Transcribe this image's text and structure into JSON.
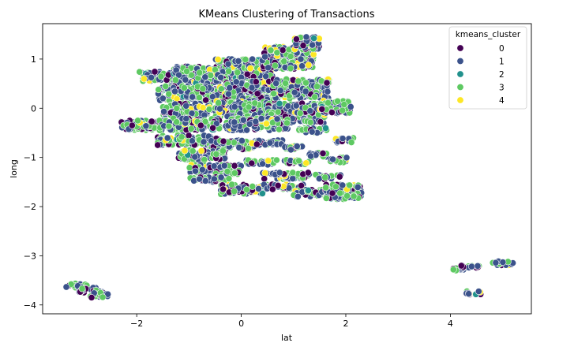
{
  "chart_data": {
    "type": "scatter",
    "title": "KMeans Clustering of Transactions",
    "xlabel": "lat",
    "ylabel": "long",
    "xlim": [
      -3.8,
      5.55
    ],
    "ylim": [
      -4.18,
      1.72
    ],
    "xticks": [
      -2,
      0,
      2,
      4
    ],
    "xtick_labels": [
      "−2",
      "0",
      "2",
      "4"
    ],
    "yticks": [
      1,
      0,
      -1,
      -2,
      -3,
      -4
    ],
    "ytick_labels": [
      "1",
      "0",
      "−1",
      "−2",
      "−3",
      "−4"
    ],
    "grid": false,
    "legend": {
      "title": "kmeans_cluster",
      "placement": "top-right",
      "entries": [
        {
          "label": "0",
          "color": "#440154"
        },
        {
          "label": "1",
          "color": "#3b528b"
        },
        {
          "label": "2",
          "color": "#21918c"
        },
        {
          "label": "3",
          "color": "#5ec962"
        },
        {
          "label": "4",
          "color": "#fde725"
        }
      ]
    },
    "point_style": {
      "edge_color": "#ffffff",
      "marker": "circle"
    },
    "clusters_visible": [
      {
        "x_range": [
          -1.95,
          -1.15
        ],
        "y_range": [
          0.55,
          0.75
        ]
      },
      {
        "x_range": [
          -1.3,
          -0.4
        ],
        "y_range": [
          0.5,
          0.85
        ]
      },
      {
        "x_range": [
          -0.5,
          0.6
        ],
        "y_range": [
          0.6,
          1.0
        ]
      },
      {
        "x_range": [
          0.4,
          1.4
        ],
        "y_range": [
          0.8,
          1.25
        ]
      },
      {
        "x_range": [
          1.0,
          1.5
        ],
        "y_range": [
          1.2,
          1.45
        ]
      },
      {
        "x_range": [
          -1.6,
          -0.3
        ],
        "y_range": [
          0.15,
          0.45
        ]
      },
      {
        "x_range": [
          -0.3,
          0.7
        ],
        "y_range": [
          0.05,
          0.55
        ]
      },
      {
        "x_range": [
          0.6,
          1.7
        ],
        "y_range": [
          0.2,
          0.6
        ]
      },
      {
        "x_range": [
          -1.5,
          -0.6
        ],
        "y_range": [
          -0.15,
          0.1
        ]
      },
      {
        "x_range": [
          -0.5,
          0.5
        ],
        "y_range": [
          -0.2,
          0.15
        ]
      },
      {
        "x_range": [
          0.5,
          1.6
        ],
        "y_range": [
          -0.3,
          0.1
        ]
      },
      {
        "x_range": [
          1.5,
          2.1
        ],
        "y_range": [
          -0.1,
          0.15
        ]
      },
      {
        "x_range": [
          -2.3,
          -1.4
        ],
        "y_range": [
          -0.45,
          -0.25
        ]
      },
      {
        "x_range": [
          -1.4,
          -0.4
        ],
        "y_range": [
          -0.45,
          -0.2
        ]
      },
      {
        "x_range": [
          -0.3,
          0.9
        ],
        "y_range": [
          -0.45,
          -0.2
        ]
      },
      {
        "x_range": [
          1.1,
          1.7
        ],
        "y_range": [
          -0.5,
          -0.4
        ]
      },
      {
        "x_range": [
          -1.6,
          -0.4
        ],
        "y_range": [
          -0.75,
          -0.55
        ]
      },
      {
        "x_range": [
          -0.6,
          0.3
        ],
        "y_range": [
          -0.85,
          -0.65
        ]
      },
      {
        "x_range": [
          0.2,
          0.8
        ],
        "y_range": [
          -0.75,
          -0.65
        ]
      },
      {
        "x_range": [
          1.8,
          2.15
        ],
        "y_range": [
          -0.7,
          -0.6
        ]
      },
      {
        "x_range": [
          -1.2,
          -0.3
        ],
        "y_range": [
          -1.05,
          -0.85
        ]
      },
      {
        "x_range": [
          0.8,
          1.2
        ],
        "y_range": [
          -0.85,
          -0.75
        ]
      },
      {
        "x_range": [
          1.3,
          1.7
        ],
        "y_range": [
          -1.0,
          -0.9
        ]
      },
      {
        "x_range": [
          -1.0,
          0.0
        ],
        "y_range": [
          -1.35,
          -1.15
        ]
      },
      {
        "x_range": [
          0.1,
          0.7
        ],
        "y_range": [
          -1.15,
          -1.05
        ]
      },
      {
        "x_range": [
          0.8,
          1.3
        ],
        "y_range": [
          -1.15,
          -1.05
        ]
      },
      {
        "x_range": [
          1.7,
          2.05
        ],
        "y_range": [
          -1.1,
          -1.0
        ]
      },
      {
        "x_range": [
          -1.0,
          -0.2
        ],
        "y_range": [
          -1.5,
          -1.4
        ]
      },
      {
        "x_range": [
          0.4,
          1.3
        ],
        "y_range": [
          -1.45,
          -1.3
        ]
      },
      {
        "x_range": [
          1.4,
          1.9
        ],
        "y_range": [
          -1.45,
          -1.35
        ]
      },
      {
        "x_range": [
          -0.4,
          0.5
        ],
        "y_range": [
          -1.75,
          -1.55
        ]
      },
      {
        "x_range": [
          0.5,
          1.2
        ],
        "y_range": [
          -1.65,
          -1.55
        ]
      },
      {
        "x_range": [
          1.0,
          1.6
        ],
        "y_range": [
          -1.8,
          -1.65
        ]
      },
      {
        "x_range": [
          1.6,
          2.3
        ],
        "y_range": [
          -1.85,
          -1.55
        ]
      },
      {
        "x_range": [
          -3.35,
          -2.95
        ],
        "y_range": [
          -3.65,
          -3.55
        ]
      },
      {
        "x_range": [
          -3.1,
          -2.65
        ],
        "y_range": [
          -3.75,
          -3.65
        ]
      },
      {
        "x_range": [
          -2.95,
          -2.55
        ],
        "y_range": [
          -3.85,
          -3.75
        ]
      },
      {
        "x_range": [
          4.05,
          4.3
        ],
        "y_range": [
          -3.3,
          -3.2
        ]
      },
      {
        "x_range": [
          4.2,
          4.55
        ],
        "y_range": [
          -3.25,
          -3.2
        ]
      },
      {
        "x_range": [
          4.8,
          5.2
        ],
        "y_range": [
          -3.2,
          -3.1
        ]
      },
      {
        "x_range": [
          4.3,
          4.6
        ],
        "y_range": [
          -3.8,
          -3.72
        ]
      }
    ]
  }
}
